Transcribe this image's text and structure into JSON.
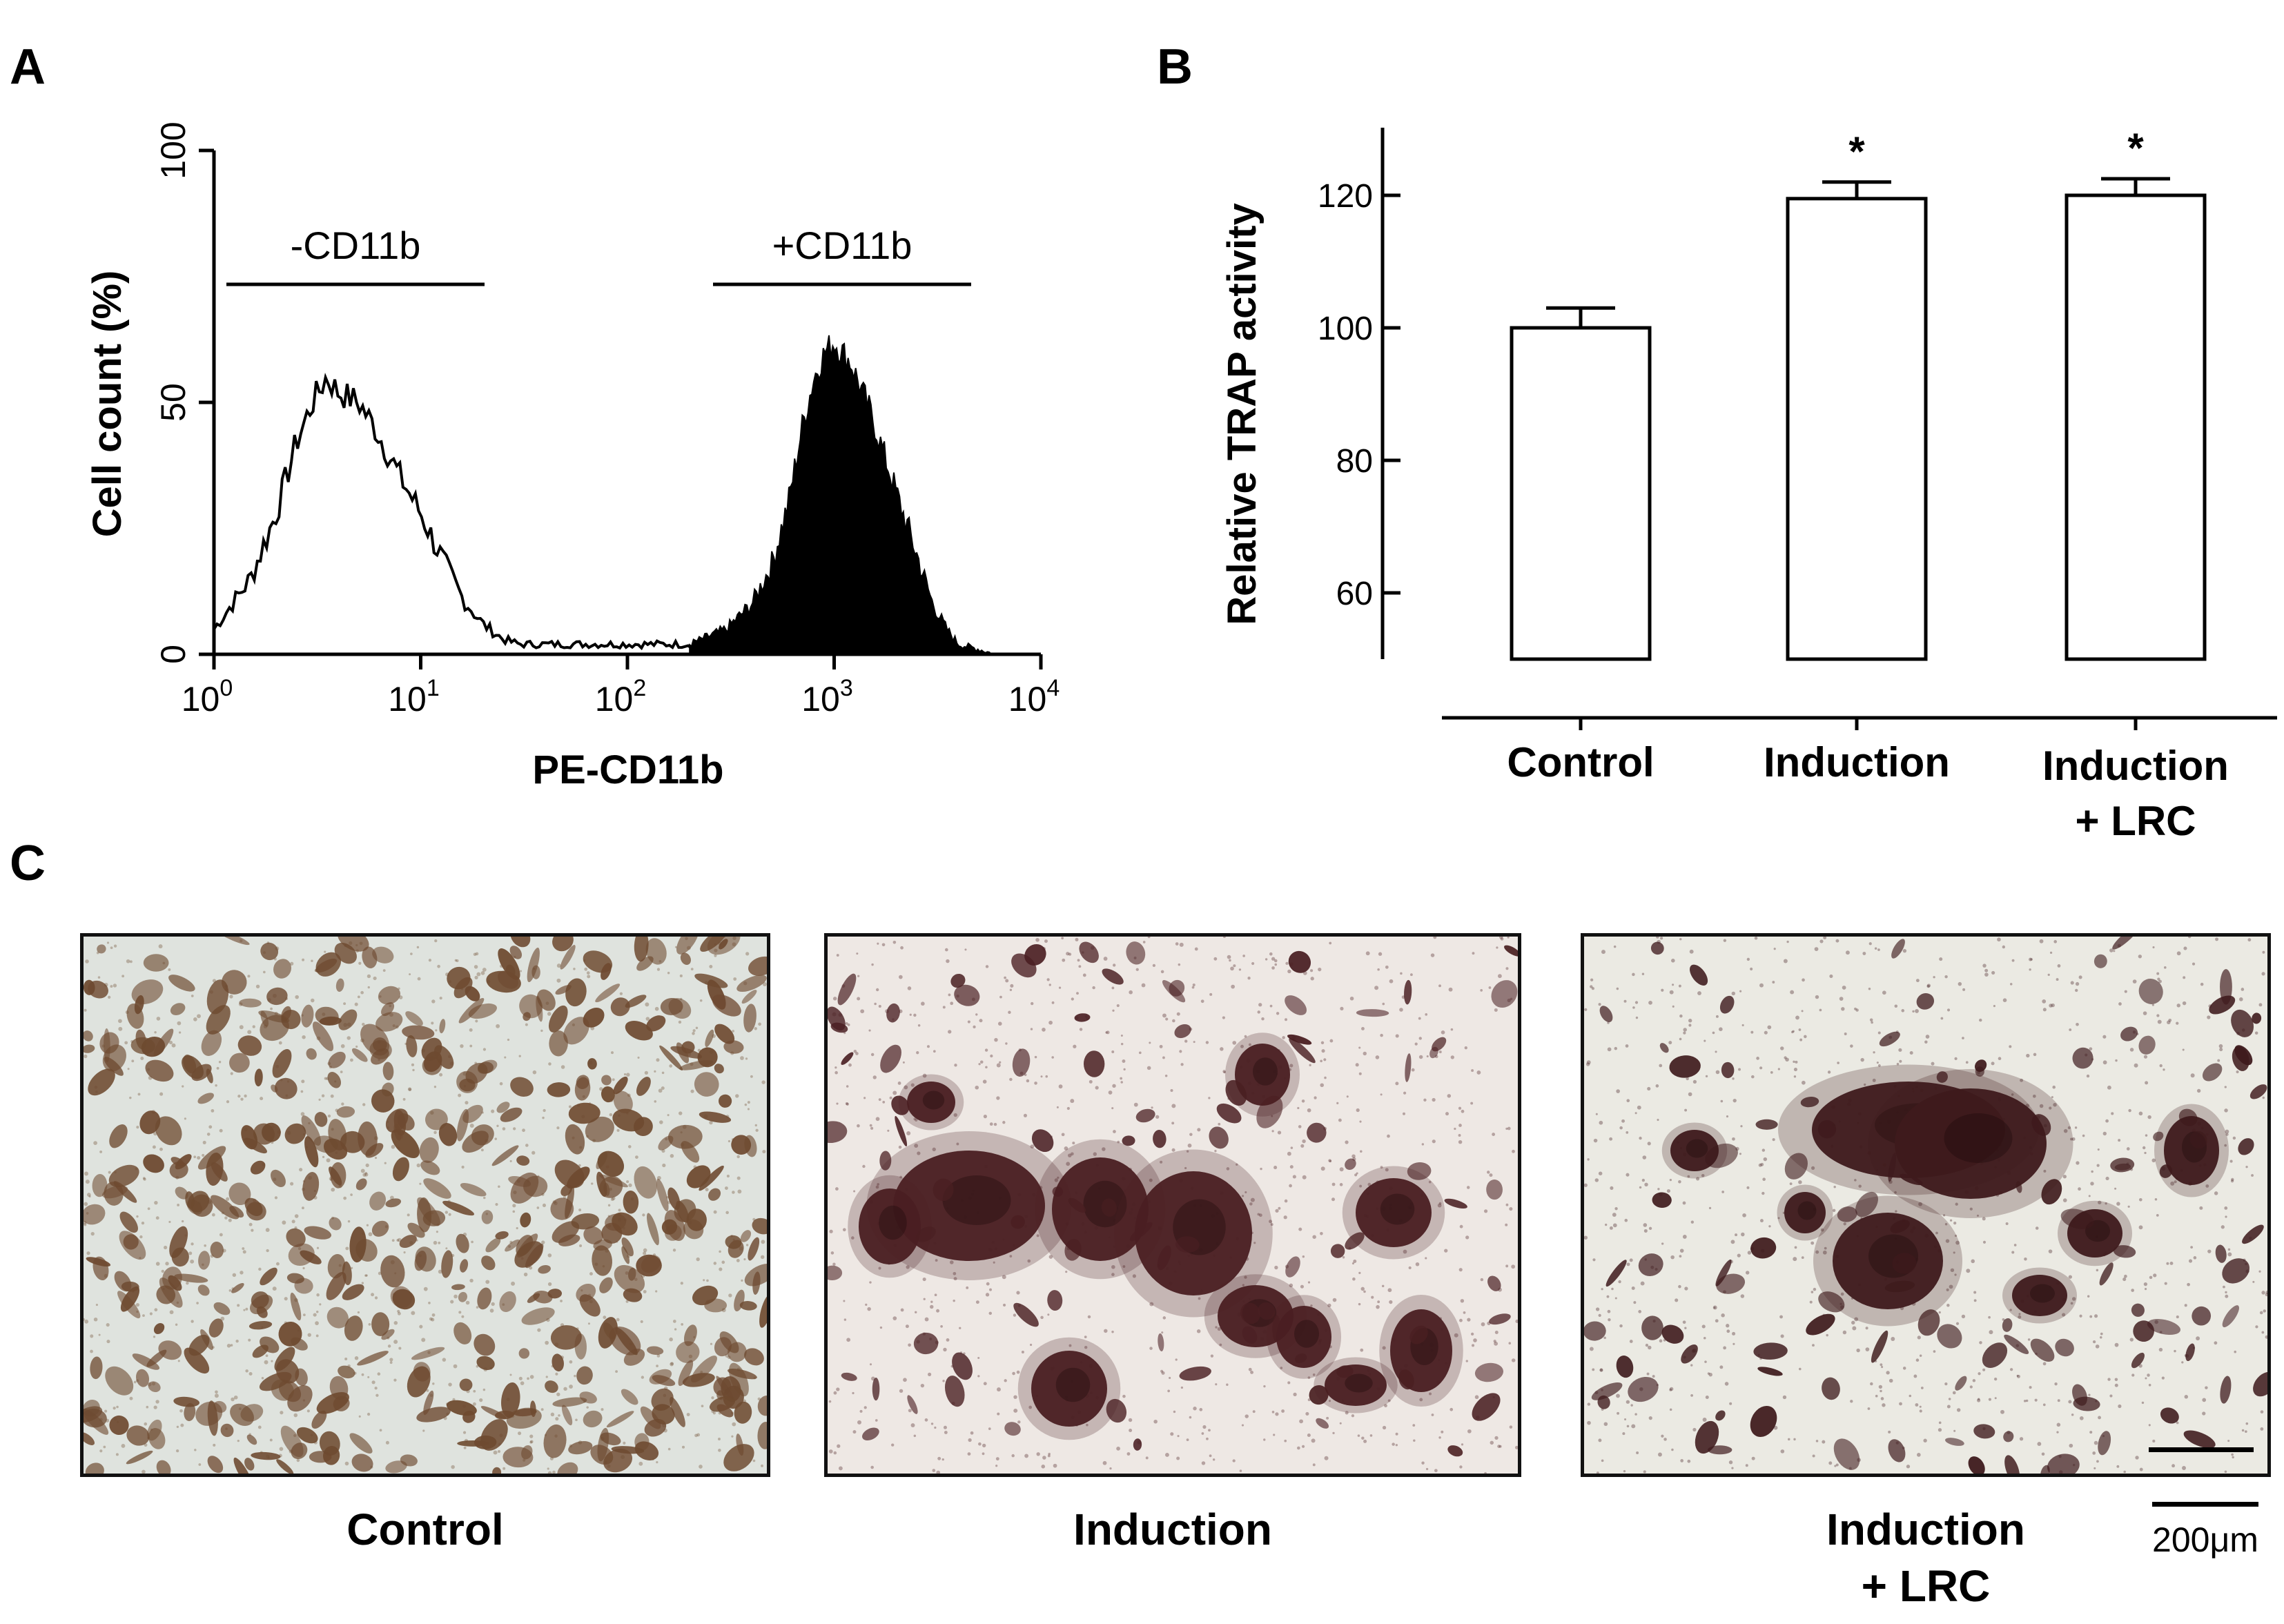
{
  "panels": {
    "a": "A",
    "b": "B",
    "c": "C"
  },
  "panel_a": {
    "ylabel": "Cell count (%)",
    "xlabel": "PE-CD11b",
    "y_ticks": [
      "0",
      "50",
      "100"
    ],
    "x_ticks": [
      {
        "base": "10",
        "exp": "0"
      },
      {
        "base": "10",
        "exp": "1"
      },
      {
        "base": "10",
        "exp": "2"
      },
      {
        "base": "10",
        "exp": "3"
      },
      {
        "base": "10",
        "exp": "4"
      }
    ],
    "gate_neg": "-CD11b",
    "gate_pos": "+CD11b"
  },
  "chart_data": [
    {
      "type": "area",
      "ylabel": "Cell count (%)",
      "xlabel": "PE-CD11b",
      "x_scale": "log",
      "xlim": [
        1,
        10000
      ],
      "ylim": [
        0,
        100
      ],
      "series": [
        {
          "name": "-CD11b",
          "fill": "none",
          "x": [
            1,
            1.5,
            2,
            2.5,
            3,
            3.5,
            4,
            5,
            6,
            8,
            10,
            13,
            16,
            20,
            25,
            30,
            40,
            60,
            100,
            150,
            200,
            250
          ],
          "y": [
            5,
            15,
            28,
            42,
            50,
            55,
            52,
            50,
            45,
            35,
            28,
            18,
            11,
            6,
            3,
            2,
            2,
            2,
            2,
            2,
            2,
            2
          ]
        },
        {
          "name": "+CD11b",
          "fill": "black",
          "x": [
            200,
            300,
            400,
            500,
            600,
            700,
            800,
            900,
            1000,
            1200,
            1500,
            2000,
            2500,
            3000,
            3500,
            4000,
            5000,
            6000
          ],
          "y": [
            2,
            5,
            10,
            18,
            30,
            45,
            55,
            60,
            62,
            58,
            48,
            32,
            20,
            10,
            5,
            2,
            1,
            0
          ]
        }
      ],
      "annotations": [
        "-CD11b",
        "+CD11b"
      ]
    },
    {
      "type": "bar",
      "categories": [
        "Control",
        "Induction",
        "Induction\n+ LRC"
      ],
      "values": [
        100,
        119.5,
        120
      ],
      "errors": [
        3,
        2.5,
        2.5
      ],
      "significance": [
        "",
        "*",
        "*"
      ],
      "ylabel": "Relative TRAP activity",
      "ylim": [
        50,
        130
      ],
      "yticks": [
        60,
        80,
        100,
        120
      ]
    }
  ],
  "panel_b": {
    "ylabel": "Relative TRAP activity",
    "y_ticks": [
      "60",
      "80",
      "100",
      "120"
    ],
    "categories": [
      "Control",
      "Induction",
      "Induction",
      "+ LRC"
    ],
    "stars": [
      "*",
      "*"
    ]
  },
  "panel_c": {
    "captions": [
      "Control",
      "Induction",
      "Induction",
      "+ LRC"
    ],
    "scale_bar": "200μm"
  }
}
